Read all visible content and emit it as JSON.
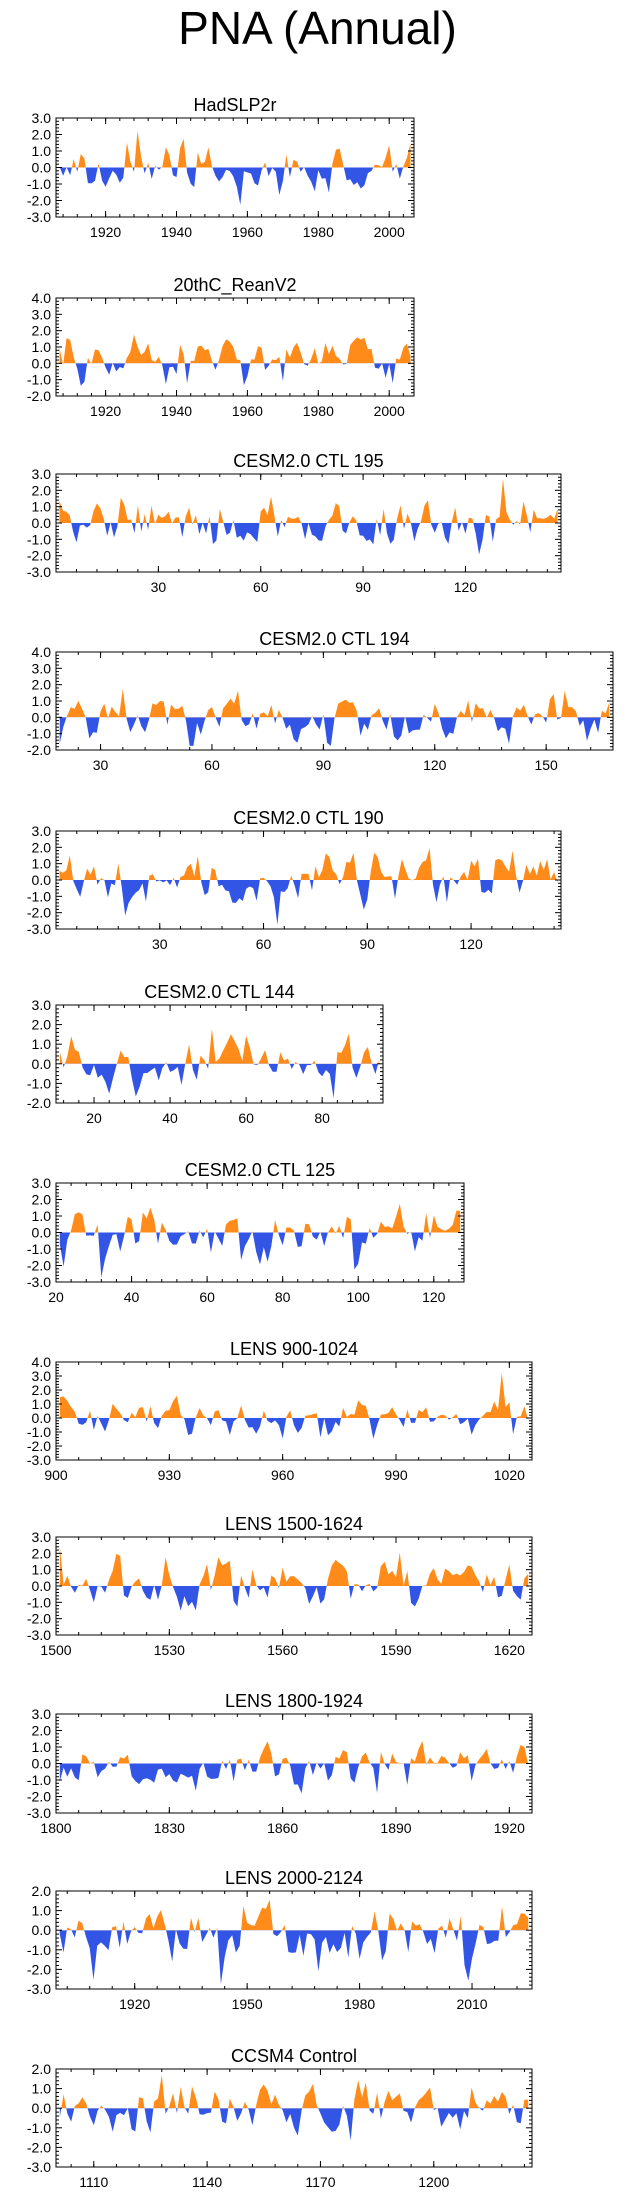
{
  "title": "PNA (Annual)",
  "colors": {
    "positive": "#ff8c1a",
    "negative": "#3355e6",
    "axis": "#000000"
  },
  "chart_data": [
    {
      "type": "area",
      "title": "HadSLP2r",
      "x_start": 1906,
      "x_end": 2007,
      "xticks": [
        1920,
        1940,
        1960,
        1980,
        2000
      ],
      "yticks": [
        -3,
        -2,
        -1,
        0,
        1,
        2,
        3
      ],
      "ytick_labels": [
        "-3.0",
        "-2.0",
        "-1.0",
        "0.0",
        "1.0",
        "2.0",
        "3.0"
      ],
      "ylim": [
        -3,
        3
      ],
      "xlabel": "",
      "ylabel": "",
      "seed": 11
    },
    {
      "type": "area",
      "title": "20thC_ReanV2",
      "x_start": 1906,
      "x_end": 2007,
      "xticks": [
        1920,
        1940,
        1960,
        1980,
        2000
      ],
      "yticks": [
        -2,
        -1,
        0,
        1,
        2,
        3,
        4
      ],
      "ytick_labels": [
        "-2.0",
        "-1.0",
        "0.0",
        "1.0",
        "2.0",
        "3.0",
        "4.0"
      ],
      "ylim": [
        -2,
        4
      ],
      "xlabel": "",
      "ylabel": "",
      "seed": 23
    },
    {
      "type": "area",
      "title": "CESM2.0 CTL 195",
      "x_start": 0,
      "x_end": 148,
      "xticks": [
        30,
        60,
        90,
        120
      ],
      "yticks": [
        -3,
        -2,
        -1,
        0,
        1,
        2,
        3
      ],
      "ytick_labels": [
        "-3.0",
        "-2.0",
        "-1.0",
        "0.0",
        "1.0",
        "2.0",
        "3.0"
      ],
      "ylim": [
        -3,
        3
      ],
      "xlabel": "",
      "ylabel": "",
      "seed": 37
    },
    {
      "type": "area",
      "title": "CESM2.0 CTL 194",
      "x_start": 18,
      "x_end": 168,
      "xticks": [
        30,
        60,
        90,
        120,
        150
      ],
      "yticks": [
        -2,
        -1,
        0,
        1,
        2,
        3,
        4
      ],
      "ytick_labels": [
        "-2.0",
        "-1.0",
        "0.0",
        "1.0",
        "2.0",
        "3.0",
        "4.0"
      ],
      "ylim": [
        -2,
        4
      ],
      "xlabel": "",
      "ylabel": "",
      "seed": 41
    },
    {
      "type": "area",
      "title": "CESM2.0 CTL 190",
      "x_start": 0,
      "x_end": 146,
      "xticks": [
        30,
        60,
        90,
        120
      ],
      "yticks": [
        -3,
        -2,
        -1,
        0,
        1,
        2,
        3
      ],
      "ytick_labels": [
        "-3.0",
        "-2.0",
        "-1.0",
        "0.0",
        "1.0",
        "2.0",
        "3.0"
      ],
      "ylim": [
        -3,
        3
      ],
      "xlabel": "",
      "ylabel": "",
      "seed": 53
    },
    {
      "type": "area",
      "title": "CESM2.0 CTL 144",
      "x_start": 10,
      "x_end": 96,
      "xticks": [
        20,
        40,
        60,
        80
      ],
      "yticks": [
        -2,
        -1,
        0,
        1,
        2,
        3
      ],
      "ytick_labels": [
        "-2.0",
        "-1.0",
        "0.0",
        "1.0",
        "2.0",
        "3.0"
      ],
      "ylim": [
        -2,
        3
      ],
      "xlabel": "",
      "ylabel": "",
      "seed": 67
    },
    {
      "type": "area",
      "title": "CESM2.0 CTL 125",
      "x_start": 20,
      "x_end": 128,
      "xticks": [
        20,
        40,
        60,
        80,
        100,
        120
      ],
      "yticks": [
        -3,
        -2,
        -1,
        0,
        1,
        2,
        3
      ],
      "ytick_labels": [
        "-3.0",
        "-2.0",
        "-1.0",
        "0.0",
        "1.0",
        "2.0",
        "3.0"
      ],
      "ylim": [
        -3,
        3
      ],
      "xlabel": "",
      "ylabel": "",
      "seed": 71
    },
    {
      "type": "area",
      "title": "LENS 900-1024",
      "x_start": 900,
      "x_end": 1026,
      "xticks": [
        900,
        930,
        960,
        990,
        1020
      ],
      "yticks": [
        -3,
        -2,
        -1,
        0,
        1,
        2,
        3,
        4
      ],
      "ytick_labels": [
        "-3.0",
        "-2.0",
        "-1.0",
        "0.0",
        "1.0",
        "2.0",
        "3.0",
        "4.0"
      ],
      "ylim": [
        -3,
        4
      ],
      "xlabel": "",
      "ylabel": "",
      "seed": 83
    },
    {
      "type": "area",
      "title": "LENS 1500-1624",
      "x_start": 1500,
      "x_end": 1626,
      "xticks": [
        1500,
        1530,
        1560,
        1590,
        1620
      ],
      "yticks": [
        -3,
        -2,
        -1,
        0,
        1,
        2,
        3
      ],
      "ytick_labels": [
        "-3.0",
        "-2.0",
        "-1.0",
        "0.0",
        "1.0",
        "2.0",
        "3.0"
      ],
      "ylim": [
        -3,
        3
      ],
      "xlabel": "",
      "ylabel": "",
      "seed": 97
    },
    {
      "type": "area",
      "title": "LENS 1800-1924",
      "x_start": 1800,
      "x_end": 1926,
      "xticks": [
        1800,
        1830,
        1860,
        1890,
        1920
      ],
      "yticks": [
        -3,
        -2,
        -1,
        0,
        1,
        2,
        3
      ],
      "ytick_labels": [
        "-3.0",
        "-2.0",
        "-1.0",
        "0.0",
        "1.0",
        "2.0",
        "3.0"
      ],
      "ylim": [
        -3,
        3
      ],
      "xlabel": "",
      "ylabel": "",
      "seed": 101
    },
    {
      "type": "area",
      "title": "LENS 2000-2124",
      "x_start": 1899,
      "x_end": 2026,
      "xticks": [
        1920,
        1950,
        1980,
        2010
      ],
      "yticks": [
        -3,
        -2,
        -1,
        0,
        1,
        2
      ],
      "ytick_labels": [
        "-3.0",
        "-2.0",
        "-1.0",
        "0.0",
        "1.0",
        "2.0"
      ],
      "ylim": [
        -3,
        2
      ],
      "xlabel": "",
      "ylabel": "",
      "seed": 113
    },
    {
      "type": "area",
      "title": "CCSM4 Control",
      "x_start": 1100,
      "x_end": 1226,
      "xticks": [
        1110,
        1140,
        1170,
        1200
      ],
      "yticks": [
        -3,
        -2,
        -1,
        0,
        1,
        2
      ],
      "ytick_labels": [
        "-3.0",
        "-2.0",
        "-1.0",
        "0.0",
        "1.0",
        "2.0"
      ],
      "ylim": [
        -3,
        2
      ],
      "xlabel": "",
      "ylabel": "",
      "seed": 127
    }
  ]
}
